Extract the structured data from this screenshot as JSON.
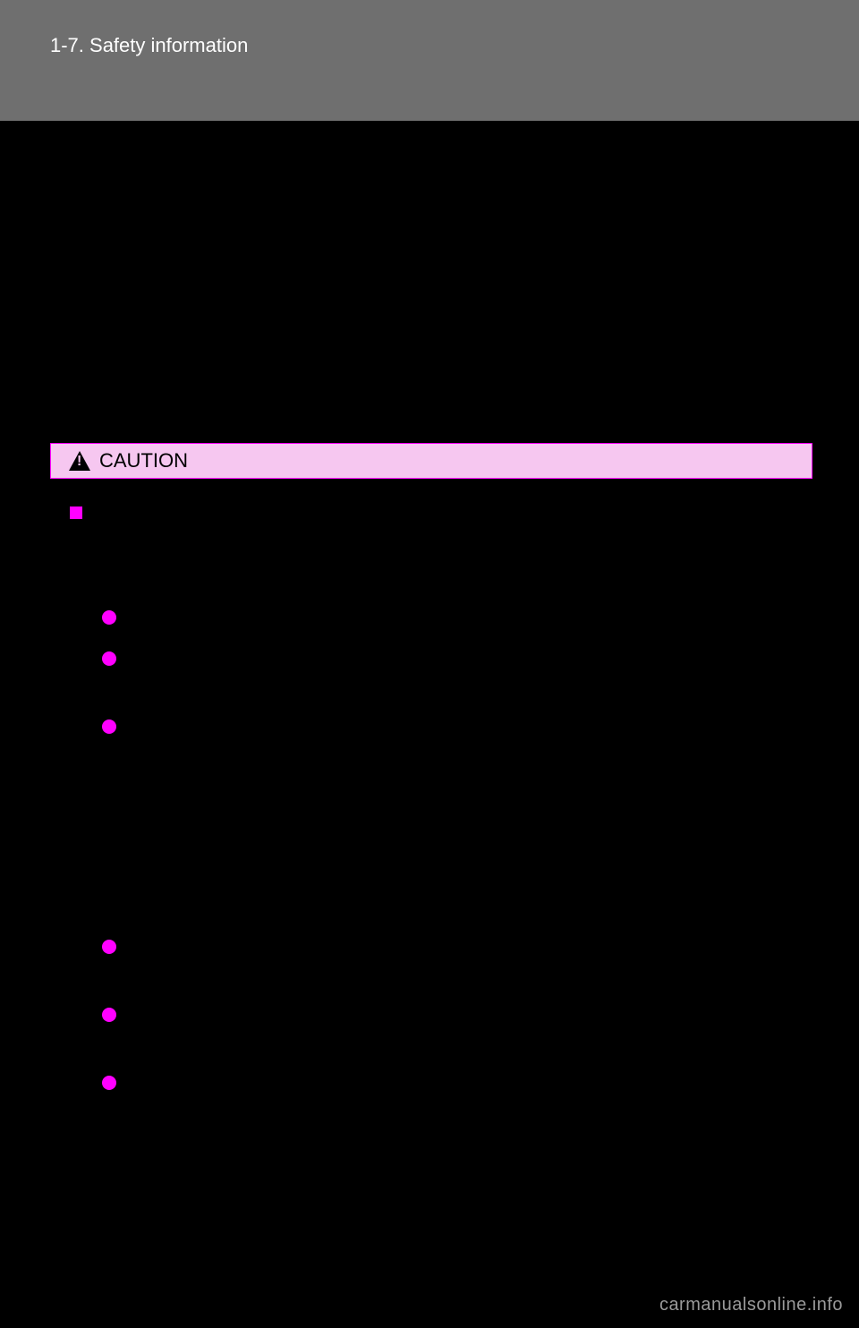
{
  "header": {
    "section_label": "1-7. Safety information",
    "page_number": ""
  },
  "caution": {
    "label": "CAUTION"
  },
  "section": {
    "heading": ""
  },
  "bullets_group1": [
    {
      "text": ""
    },
    {
      "text": "",
      "tall": true
    },
    {
      "text": ""
    }
  ],
  "bullets_group2": [
    {
      "text": "",
      "tall": true
    },
    {
      "text": "",
      "tall": true
    },
    {
      "text": ""
    }
  ],
  "footer": {
    "watermark": "carmanualsonline.info"
  },
  "colors": {
    "header_bg": "#6f6f6f",
    "page_bg": "#000000",
    "accent": "#ff00ff",
    "caution_bg": "#f6c7f0",
    "text": "#ffffff",
    "footer_text": "#9a9a9a"
  }
}
